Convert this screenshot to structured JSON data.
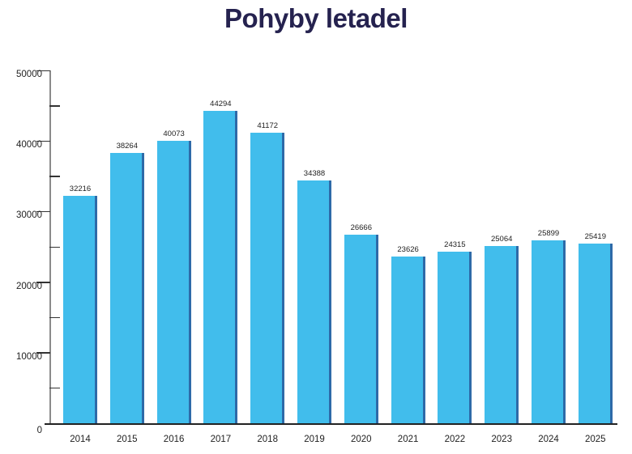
{
  "header": {
    "title": "Pohyby letadel"
  },
  "colors": {
    "bar": "#41bdec",
    "bar_edge": "#2e6aa8",
    "title": "#25224f"
  },
  "chart_data": {
    "type": "bar",
    "title": "Pohyby letadel",
    "xlabel": "",
    "ylabel": "",
    "categories": [
      "2014",
      "2015",
      "2016",
      "2017",
      "2018",
      "2019",
      "2020",
      "2021",
      "2022",
      "2023",
      "2024",
      "2025"
    ],
    "values": [
      32216,
      38264,
      40073,
      44294,
      41172,
      34388,
      26666,
      23626,
      24315,
      25064,
      25899,
      25419
    ],
    "data_labels": [
      "32216",
      "38264",
      "40073",
      "44294",
      "41172",
      "34388",
      "26666",
      "23626",
      "24315",
      "25064",
      "25899",
      "25419"
    ],
    "ylim": [
      0,
      50000
    ],
    "yticks": [
      "0",
      "10000",
      "20000",
      "30000",
      "40000",
      "50000"
    ],
    "minor_ticks_every": 5000,
    "grid": false,
    "legend": null
  }
}
